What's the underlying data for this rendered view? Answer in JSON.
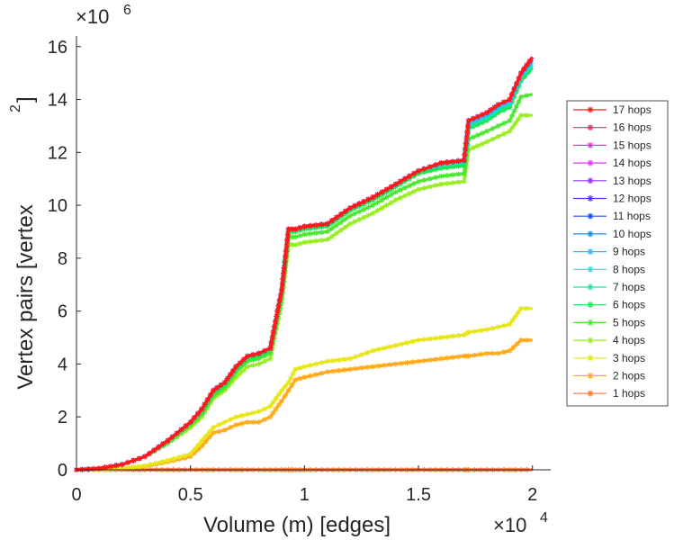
{
  "chart_data": {
    "type": "line",
    "xlabel": "Volume (m) [edges]",
    "ylabel": "Vertex pairs [vertex",
    "ylabel_superscript": "2",
    "ylabel_suffix": "]",
    "x_multiplier": "×10",
    "x_multiplier_exp": "4",
    "y_multiplier": "×10",
    "y_multiplier_exp": "6",
    "xlim": [
      0,
      2.08
    ],
    "ylim": [
      0,
      16.4
    ],
    "x_ticks": [
      0,
      0.5,
      1,
      1.5,
      2
    ],
    "x_tick_labels": [
      "0",
      "0.5",
      "1",
      "1.5",
      "2"
    ],
    "y_ticks": [
      0,
      2,
      4,
      6,
      8,
      10,
      12,
      14,
      16
    ],
    "y_tick_labels": [
      "0",
      "2",
      "4",
      "6",
      "8",
      "10",
      "12",
      "14",
      "16"
    ],
    "x": [
      0,
      0.1,
      0.2,
      0.3,
      0.4,
      0.5,
      0.55,
      0.6,
      0.65,
      0.7,
      0.75,
      0.8,
      0.85,
      0.9,
      0.93,
      0.96,
      1.0,
      1.1,
      1.2,
      1.3,
      1.4,
      1.5,
      1.6,
      1.7,
      1.72,
      1.8,
      1.85,
      1.9,
      1.95,
      2.0
    ],
    "legend_position": "outside-right",
    "series": [
      {
        "name": "17 hops",
        "color": "#ff1a1a",
        "values": [
          0.0,
          0.05,
          0.2,
          0.5,
          1.1,
          1.8,
          2.3,
          3.0,
          3.3,
          3.9,
          4.3,
          4.4,
          4.6,
          6.8,
          9.1,
          9.1,
          9.2,
          9.3,
          9.9,
          10.3,
          10.8,
          11.3,
          11.6,
          11.7,
          13.2,
          13.5,
          13.8,
          14.0,
          15.0,
          15.6
        ]
      },
      {
        "name": "16 hops",
        "color": "#ff2277",
        "values": [
          0.0,
          0.05,
          0.2,
          0.5,
          1.1,
          1.8,
          2.3,
          3.0,
          3.3,
          3.9,
          4.3,
          4.4,
          4.6,
          6.8,
          9.1,
          9.1,
          9.2,
          9.3,
          9.9,
          10.3,
          10.8,
          11.3,
          11.6,
          11.7,
          13.2,
          13.5,
          13.8,
          14.0,
          15.0,
          15.6
        ]
      },
      {
        "name": "15 hops",
        "color": "#ff33cc",
        "values": [
          0.0,
          0.05,
          0.2,
          0.5,
          1.1,
          1.8,
          2.3,
          3.0,
          3.3,
          3.9,
          4.3,
          4.4,
          4.6,
          6.8,
          9.1,
          9.1,
          9.2,
          9.3,
          9.9,
          10.3,
          10.8,
          11.3,
          11.6,
          11.7,
          13.2,
          13.5,
          13.8,
          14.0,
          15.0,
          15.6
        ]
      },
      {
        "name": "14 hops",
        "color": "#e633ff",
        "values": [
          0.0,
          0.05,
          0.2,
          0.5,
          1.1,
          1.8,
          2.3,
          3.0,
          3.3,
          3.9,
          4.3,
          4.4,
          4.6,
          6.8,
          9.1,
          9.1,
          9.2,
          9.3,
          9.9,
          10.3,
          10.8,
          11.3,
          11.6,
          11.7,
          13.2,
          13.5,
          13.8,
          14.0,
          15.0,
          15.6
        ]
      },
      {
        "name": "13 hops",
        "color": "#9933ff",
        "values": [
          0.0,
          0.05,
          0.2,
          0.5,
          1.1,
          1.8,
          2.3,
          3.0,
          3.3,
          3.9,
          4.3,
          4.4,
          4.6,
          6.8,
          9.1,
          9.1,
          9.2,
          9.3,
          9.9,
          10.3,
          10.8,
          11.3,
          11.6,
          11.7,
          13.2,
          13.5,
          13.8,
          14.0,
          15.0,
          15.6
        ]
      },
      {
        "name": "12 hops",
        "color": "#4d33ff",
        "values": [
          0.0,
          0.05,
          0.2,
          0.5,
          1.1,
          1.8,
          2.3,
          3.0,
          3.3,
          3.9,
          4.3,
          4.4,
          4.6,
          6.8,
          9.1,
          9.1,
          9.2,
          9.3,
          9.9,
          10.3,
          10.8,
          11.3,
          11.6,
          11.7,
          13.2,
          13.5,
          13.8,
          14.0,
          15.0,
          15.6
        ]
      },
      {
        "name": "11 hops",
        "color": "#1a4dff",
        "values": [
          0.0,
          0.05,
          0.2,
          0.5,
          1.1,
          1.8,
          2.3,
          3.0,
          3.3,
          3.9,
          4.3,
          4.4,
          4.6,
          6.8,
          9.1,
          9.1,
          9.2,
          9.3,
          9.9,
          10.3,
          10.8,
          11.3,
          11.6,
          11.7,
          13.2,
          13.5,
          13.8,
          14.0,
          15.0,
          15.6
        ]
      },
      {
        "name": "10 hops",
        "color": "#1a8cff",
        "values": [
          0.0,
          0.05,
          0.2,
          0.5,
          1.1,
          1.8,
          2.3,
          3.0,
          3.3,
          3.9,
          4.3,
          4.4,
          4.6,
          6.8,
          9.1,
          9.1,
          9.2,
          9.3,
          9.9,
          10.3,
          10.8,
          11.3,
          11.6,
          11.7,
          13.2,
          13.5,
          13.8,
          14.0,
          15.0,
          15.5
        ]
      },
      {
        "name": "9 hops",
        "color": "#1ac6ff",
        "values": [
          0.0,
          0.05,
          0.2,
          0.5,
          1.1,
          1.8,
          2.3,
          3.0,
          3.3,
          3.9,
          4.3,
          4.4,
          4.6,
          6.8,
          9.1,
          9.1,
          9.2,
          9.3,
          9.9,
          10.3,
          10.8,
          11.3,
          11.6,
          11.7,
          13.1,
          13.4,
          13.7,
          13.9,
          14.9,
          15.5
        ]
      },
      {
        "name": "8 hops",
        "color": "#1ae6d9",
        "values": [
          0.0,
          0.05,
          0.2,
          0.5,
          1.1,
          1.8,
          2.3,
          3.0,
          3.3,
          3.9,
          4.3,
          4.4,
          4.6,
          6.8,
          9.1,
          9.1,
          9.2,
          9.3,
          9.9,
          10.3,
          10.8,
          11.3,
          11.6,
          11.7,
          13.1,
          13.4,
          13.7,
          13.9,
          14.9,
          15.4
        ]
      },
      {
        "name": "7 hops",
        "color": "#1ae699",
        "values": [
          0.0,
          0.05,
          0.2,
          0.5,
          1.1,
          1.8,
          2.3,
          3.0,
          3.3,
          3.9,
          4.3,
          4.4,
          4.6,
          6.8,
          9.1,
          9.1,
          9.2,
          9.3,
          9.9,
          10.3,
          10.8,
          11.3,
          11.5,
          11.6,
          13.0,
          13.3,
          13.6,
          13.8,
          14.8,
          15.3
        ]
      },
      {
        "name": "6 hops",
        "color": "#1ae64d",
        "values": [
          0.0,
          0.05,
          0.2,
          0.5,
          1.1,
          1.8,
          2.2,
          2.9,
          3.2,
          3.8,
          4.2,
          4.3,
          4.5,
          6.7,
          9.0,
          9.0,
          9.1,
          9.2,
          9.8,
          10.2,
          10.7,
          11.2,
          11.4,
          11.5,
          12.9,
          13.2,
          13.5,
          13.7,
          14.7,
          15.2
        ]
      },
      {
        "name": "5 hops",
        "color": "#4de633",
        "values": [
          0.0,
          0.05,
          0.2,
          0.5,
          1.0,
          1.7,
          2.1,
          2.8,
          3.1,
          3.7,
          4.1,
          4.2,
          4.4,
          6.5,
          8.8,
          8.8,
          8.9,
          9.0,
          9.6,
          10.0,
          10.5,
          10.9,
          11.1,
          11.2,
          12.5,
          12.8,
          13.0,
          13.2,
          14.1,
          14.2
        ]
      },
      {
        "name": "4 hops",
        "color": "#99ee22",
        "values": [
          0.0,
          0.05,
          0.2,
          0.5,
          1.0,
          1.6,
          2.0,
          2.7,
          3.0,
          3.5,
          3.9,
          4.0,
          4.2,
          6.3,
          8.5,
          8.5,
          8.6,
          8.7,
          9.3,
          9.7,
          10.2,
          10.6,
          10.8,
          10.9,
          12.1,
          12.4,
          12.6,
          12.8,
          13.4,
          13.4
        ]
      },
      {
        "name": "3 hops",
        "color": "#e6e61a",
        "values": [
          0.0,
          0.01,
          0.05,
          0.15,
          0.35,
          0.6,
          1.1,
          1.6,
          1.8,
          2.0,
          2.1,
          2.2,
          2.4,
          3.0,
          3.3,
          3.8,
          3.9,
          4.1,
          4.2,
          4.5,
          4.7,
          4.9,
          5.0,
          5.1,
          5.2,
          5.3,
          5.4,
          5.5,
          6.1,
          6.1
        ]
      },
      {
        "name": "2 hops",
        "color": "#ffaa1a",
        "values": [
          0.0,
          0.01,
          0.04,
          0.12,
          0.3,
          0.5,
          0.9,
          1.4,
          1.5,
          1.7,
          1.8,
          1.8,
          2.0,
          2.6,
          3.0,
          3.4,
          3.5,
          3.7,
          3.8,
          3.9,
          4.0,
          4.1,
          4.2,
          4.3,
          4.3,
          4.4,
          4.4,
          4.5,
          4.9,
          4.9
        ]
      },
      {
        "name": "1 hops",
        "color": "#ff7733",
        "values": [
          0.0,
          0.0,
          0.0,
          0.0,
          0.0,
          0.0,
          0.0,
          0.0,
          0.0,
          0.0,
          0.0,
          0.0,
          0.0,
          0.0,
          0.0,
          0.0,
          0.0,
          0.0,
          0.0,
          0.0,
          0.0,
          0.0,
          0.0,
          0.0,
          0.0,
          0.0,
          0.0,
          0.0,
          0.0,
          0.0
        ]
      }
    ]
  }
}
